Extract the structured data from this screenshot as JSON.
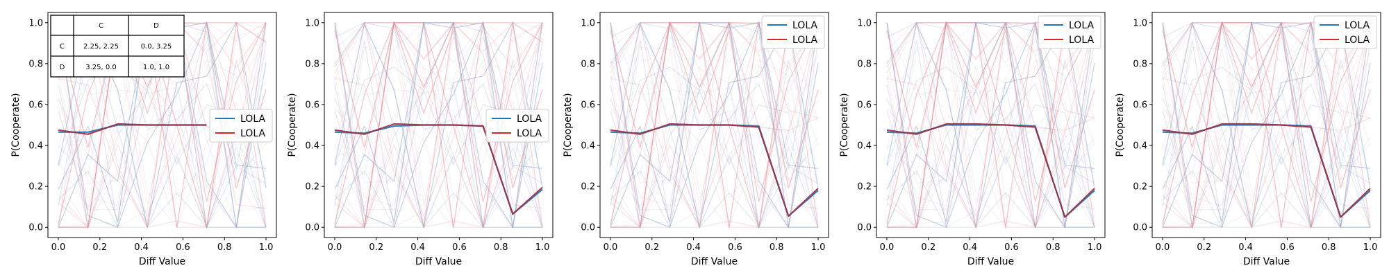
{
  "figure": {
    "panels": 5
  },
  "colors": {
    "blue": "#1f77b4",
    "red": "#d62728",
    "overlap": "#9b2f44",
    "bg_blue": "#8fa3c4",
    "bg_red": "#e58a97"
  },
  "payoff_table": {
    "corner": "",
    "col_headers": [
      "C",
      "D"
    ],
    "rows": [
      {
        "label": "C",
        "cells": [
          "2.25, 2.25",
          "0.0, 3.25"
        ]
      },
      {
        "label": "D",
        "cells": [
          "3.25, 0.0",
          "1.0, 1.0"
        ]
      }
    ]
  },
  "chart_data": [
    {
      "type": "line",
      "title": "",
      "xlabel": "Diff Value",
      "ylabel": "P(Cooperate)",
      "xlim": [
        -0.05,
        1.05
      ],
      "ylim": [
        -0.05,
        1.05
      ],
      "xticks": [
        "0.0",
        "0.2",
        "0.4",
        "0.6",
        "0.8",
        "1.0"
      ],
      "yticks": [
        "0.0",
        "0.2",
        "0.4",
        "0.6",
        "0.8",
        "1.0"
      ],
      "legend": {
        "position": "center-right",
        "entries": [
          "LOLA",
          "LOLA"
        ]
      },
      "has_payoff_table": true,
      "x": [
        0.0,
        0.143,
        0.286,
        0.429,
        0.571,
        0.714
      ],
      "series": [
        {
          "name": "LOLA",
          "color": "blue",
          "values": [
            0.465,
            0.465,
            0.5,
            0.5,
            0.5,
            0.5
          ]
        },
        {
          "name": "LOLA",
          "color": "red",
          "values": [
            0.475,
            0.455,
            0.505,
            0.5,
            0.5,
            0.5
          ]
        }
      ]
    },
    {
      "type": "line",
      "title": "",
      "xlabel": "Diff Value",
      "ylabel": "P(Cooperate)",
      "xlim": [
        -0.05,
        1.05
      ],
      "ylim": [
        -0.05,
        1.05
      ],
      "xticks": [
        "0.0",
        "0.2",
        "0.4",
        "0.6",
        "0.8",
        "1.0"
      ],
      "yticks": [
        "0.0",
        "0.2",
        "0.4",
        "0.6",
        "0.8",
        "1.0"
      ],
      "legend": {
        "position": "center-right",
        "entries": [
          "LOLA",
          "LOLA"
        ]
      },
      "x": [
        0.0,
        0.143,
        0.286,
        0.429,
        0.571,
        0.714,
        0.857,
        1.0
      ],
      "series": [
        {
          "name": "LOLA",
          "color": "blue",
          "values": [
            0.465,
            0.46,
            0.495,
            0.5,
            0.5,
            0.495,
            0.065,
            0.185
          ]
        },
        {
          "name": "LOLA",
          "color": "red",
          "values": [
            0.475,
            0.455,
            0.505,
            0.5,
            0.5,
            0.495,
            0.065,
            0.195
          ]
        }
      ]
    },
    {
      "type": "line",
      "title": "",
      "xlabel": "Diff Value",
      "ylabel": "P(Cooperate)",
      "xlim": [
        -0.05,
        1.05
      ],
      "ylim": [
        -0.05,
        1.05
      ],
      "xticks": [
        "0.0",
        "0.2",
        "0.4",
        "0.6",
        "0.8",
        "1.0"
      ],
      "yticks": [
        "0.0",
        "0.2",
        "0.4",
        "0.6",
        "0.8",
        "1.0"
      ],
      "legend": {
        "position": "top-right",
        "entries": [
          "LOLA",
          "LOLA"
        ]
      },
      "x": [
        0.0,
        0.143,
        0.286,
        0.429,
        0.571,
        0.714,
        0.857,
        1.0
      ],
      "series": [
        {
          "name": "LOLA",
          "color": "blue",
          "values": [
            0.465,
            0.46,
            0.5,
            0.5,
            0.5,
            0.495,
            0.055,
            0.18
          ]
        },
        {
          "name": "LOLA",
          "color": "red",
          "values": [
            0.475,
            0.455,
            0.505,
            0.5,
            0.5,
            0.49,
            0.055,
            0.19
          ]
        }
      ]
    },
    {
      "type": "line",
      "title": "",
      "xlabel": "Diff Value",
      "ylabel": "P(Cooperate)",
      "xlim": [
        -0.05,
        1.05
      ],
      "ylim": [
        -0.05,
        1.05
      ],
      "xticks": [
        "0.0",
        "0.2",
        "0.4",
        "0.6",
        "0.8",
        "1.0"
      ],
      "yticks": [
        "0.0",
        "0.2",
        "0.4",
        "0.6",
        "0.8",
        "1.0"
      ],
      "legend": {
        "position": "top-right",
        "entries": [
          "LOLA",
          "LOLA"
        ]
      },
      "x": [
        0.0,
        0.143,
        0.286,
        0.429,
        0.571,
        0.714,
        0.857,
        1.0
      ],
      "series": [
        {
          "name": "LOLA",
          "color": "blue",
          "values": [
            0.465,
            0.46,
            0.5,
            0.5,
            0.5,
            0.495,
            0.05,
            0.18
          ]
        },
        {
          "name": "LOLA",
          "color": "red",
          "values": [
            0.475,
            0.455,
            0.505,
            0.505,
            0.5,
            0.49,
            0.05,
            0.19
          ]
        }
      ]
    },
    {
      "type": "line",
      "title": "",
      "xlabel": "Diff Value",
      "ylabel": "P(Cooperate)",
      "xlim": [
        -0.05,
        1.05
      ],
      "ylim": [
        -0.05,
        1.05
      ],
      "xticks": [
        "0.0",
        "0.2",
        "0.4",
        "0.6",
        "0.8",
        "1.0"
      ],
      "yticks": [
        "0.0",
        "0.2",
        "0.4",
        "0.6",
        "0.8",
        "1.0"
      ],
      "legend": {
        "position": "top-right",
        "entries": [
          "LOLA",
          "LOLA"
        ]
      },
      "x": [
        0.0,
        0.143,
        0.286,
        0.429,
        0.571,
        0.714,
        0.857,
        1.0
      ],
      "series": [
        {
          "name": "LOLA",
          "color": "blue",
          "values": [
            0.465,
            0.46,
            0.5,
            0.5,
            0.5,
            0.495,
            0.05,
            0.18
          ]
        },
        {
          "name": "LOLA",
          "color": "red",
          "values": [
            0.475,
            0.455,
            0.505,
            0.505,
            0.5,
            0.49,
            0.05,
            0.19
          ]
        }
      ]
    }
  ]
}
